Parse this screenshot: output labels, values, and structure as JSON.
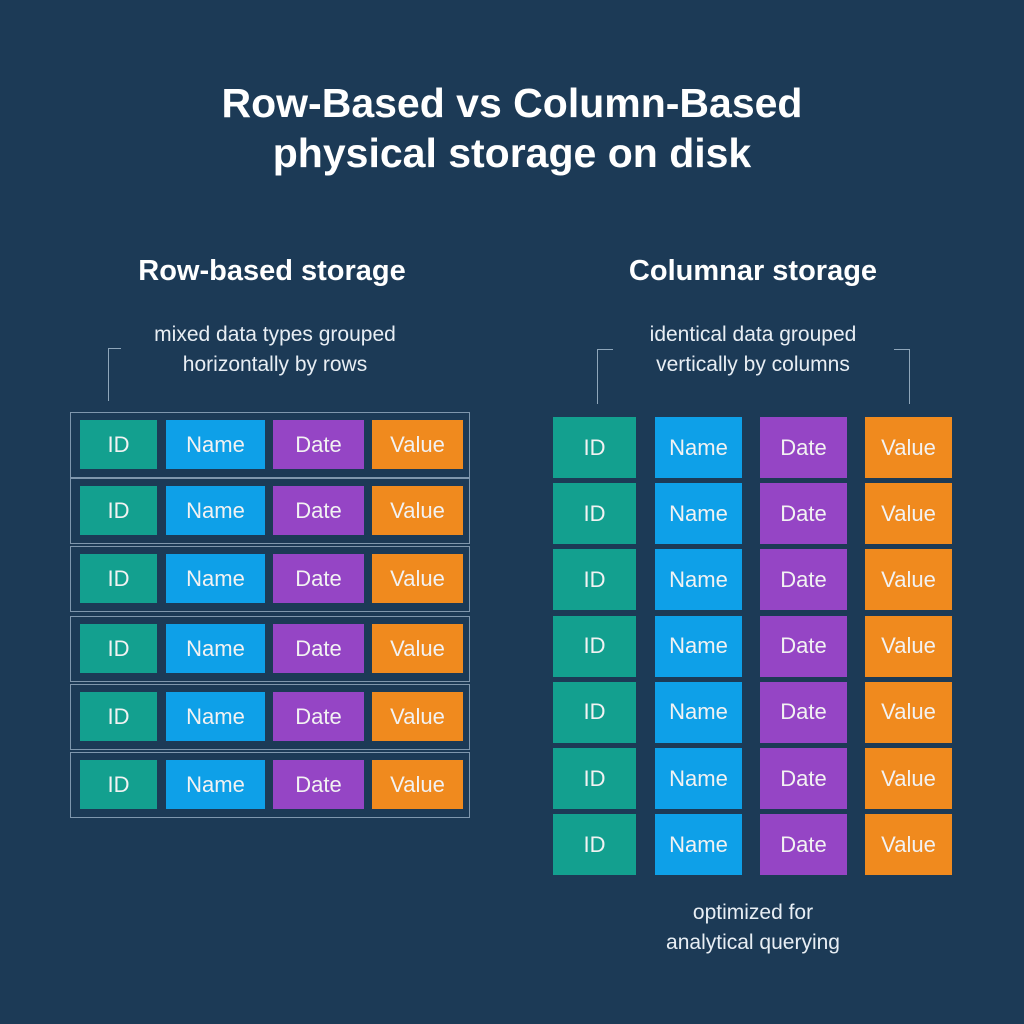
{
  "title": {
    "line1": "Row-Based vs Column-Based",
    "line2": "physical storage on disk"
  },
  "row_section": {
    "heading": "Row-based storage",
    "note_line1": "mixed data types grouped",
    "note_line2": "horizontally by rows",
    "row_count": 6
  },
  "column_section": {
    "heading": "Columnar storage",
    "note_line1": "identical data grouped",
    "note_line2": "vertically by columns",
    "row_count": 7,
    "footer_line1": "optimized for",
    "footer_line2": "analytical querying"
  },
  "fields": [
    {
      "label": "ID",
      "color": "#13a08f"
    },
    {
      "label": "Name",
      "color": "#0ea0e8"
    },
    {
      "label": "Date",
      "color": "#9545c5"
    },
    {
      "label": "Value",
      "color": "#f08a1e"
    }
  ]
}
